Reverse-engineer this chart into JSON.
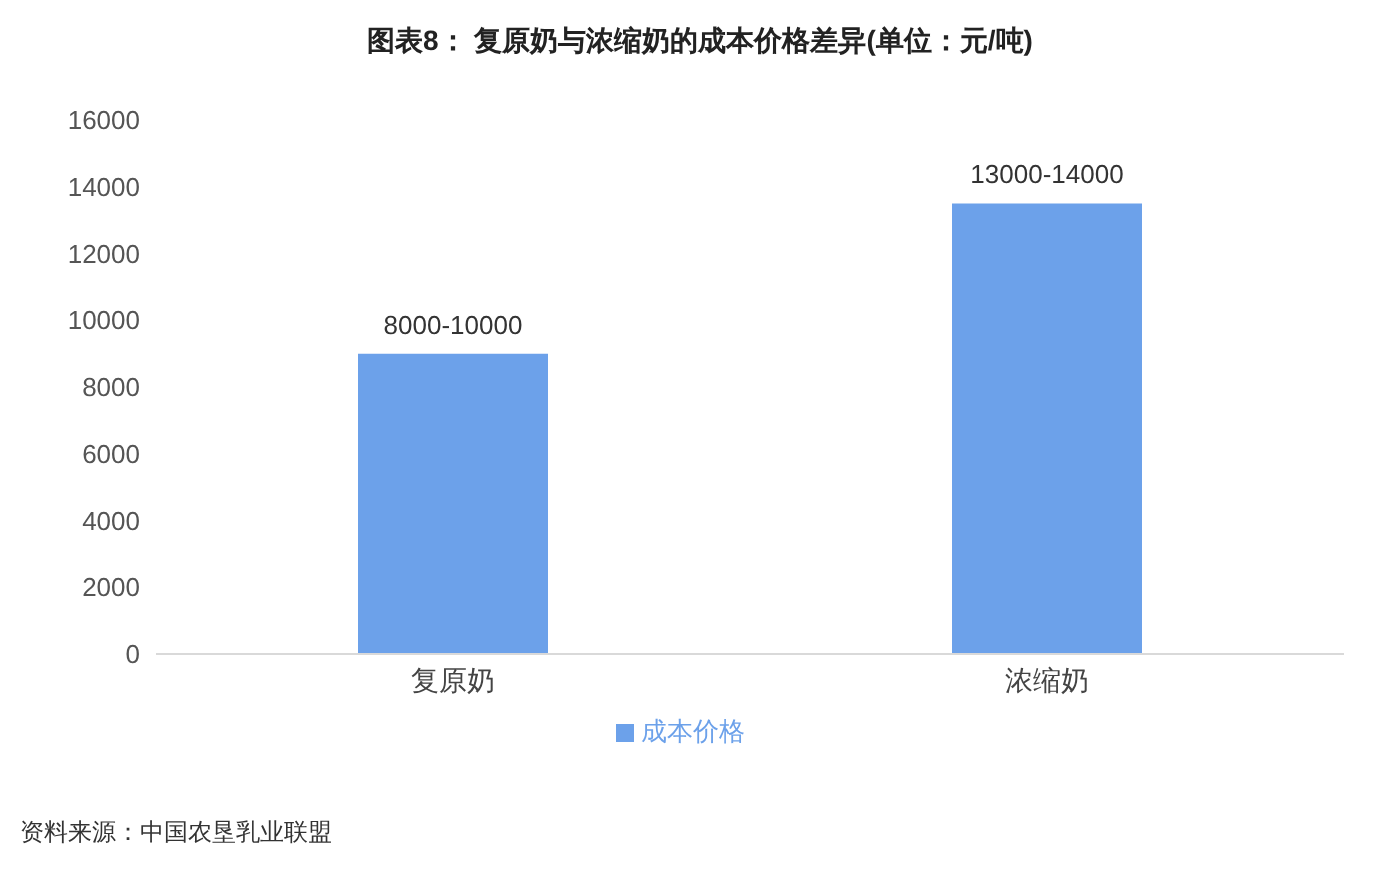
{
  "chart_data": {
    "type": "bar",
    "title": "图表8： 复原奶与浓缩奶的成本价格差异(单位：元/吨)",
    "categories": [
      "复原奶",
      "浓缩奶"
    ],
    "series": [
      {
        "name": "成本价格",
        "color": "#6ca1ea",
        "values": [
          9000,
          13500
        ],
        "value_labels": [
          "8000-10000",
          "13000-14000"
        ]
      }
    ],
    "ylim": [
      0,
      16000
    ],
    "yticks": [
      0,
      2000,
      4000,
      6000,
      8000,
      10000,
      12000,
      14000,
      16000
    ],
    "grid": false,
    "legend": "bottom",
    "annotations": [
      "资料来源：中国农垦乳业联盟"
    ]
  }
}
